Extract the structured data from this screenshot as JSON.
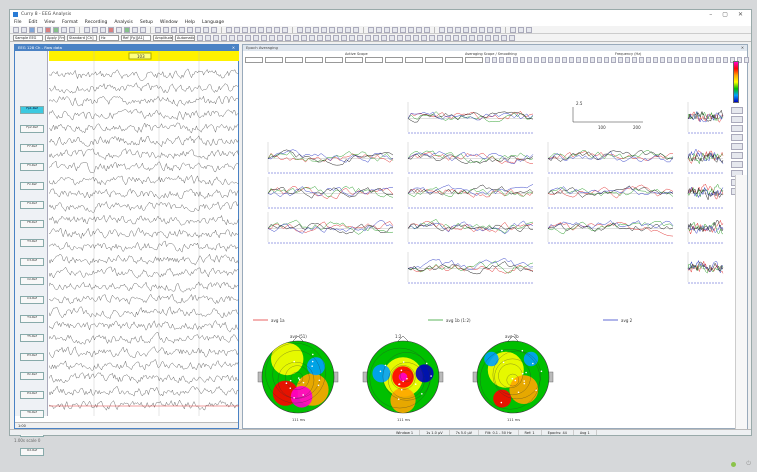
{
  "window": {
    "title": "Curry 8 - EEG Analysis",
    "controls": [
      "–",
      "▢",
      "✕"
    ]
  },
  "menu": [
    "File",
    "Edit",
    "View",
    "Format",
    "Recording",
    "Analysis",
    "Setup",
    "Window",
    "Help",
    "Language"
  ],
  "toolbar2": {
    "fields": [
      "Sample EEG",
      "Apply [Fm]",
      "Standard [Ch]",
      "Hz",
      "Ref [Fp][A1]",
      "Amplitude",
      "Automatic [AC]"
    ]
  },
  "eeg_window": {
    "title": "EEG 128 Ch - Raw data",
    "channels": [
      {
        "label": "Fp1-Ref",
        "sel": true
      },
      {
        "label": "Fp2-Ref",
        "sel": false
      },
      {
        "label": "F7-Ref",
        "sel": false
      },
      {
        "label": "F3-Ref",
        "sel": false
      },
      {
        "label": "Fz-Ref",
        "sel": false
      },
      {
        "label": "F4-Ref",
        "sel": false
      },
      {
        "label": "F8-Ref",
        "sel": false
      },
      {
        "label": "T3-Ref",
        "sel": false
      },
      {
        "label": "C3-Ref",
        "sel": false
      },
      {
        "label": "Cz-Ref",
        "sel": false
      },
      {
        "label": "C4-Ref",
        "sel": false
      },
      {
        "label": "T4-Ref",
        "sel": false
      },
      {
        "label": "T5-Ref",
        "sel": false
      },
      {
        "label": "P3-Ref",
        "sel": false
      },
      {
        "label": "Pz-Ref",
        "sel": false
      },
      {
        "label": "P4-Ref",
        "sel": false
      },
      {
        "label": "T6-Ref",
        "sel": false
      },
      {
        "label": "O1-Ref",
        "sel": false
      },
      {
        "label": "O2-Ref",
        "sel": false
      }
    ],
    "marker_label": "103",
    "status": "1:00"
  },
  "analysis_window": {
    "title": "Epoch Averaging",
    "header_labels": [
      "Active Scope",
      "Averaging Scope / Smoothing",
      "Frequency (Hz)"
    ],
    "legends": [
      {
        "label": "avg 1a",
        "color": "#e33b3b"
      },
      {
        "label": "avg 1b (1:2)",
        "color": "#33a333"
      },
      {
        "label": "avg 2",
        "color": "#3a46c9"
      }
    ],
    "topo_labels": [
      "avg (51)",
      "1:2",
      "avg 2b"
    ],
    "topo_times": [
      "111 ms",
      "111 ms",
      "111 ms"
    ],
    "scale_text": [
      "2.5",
      "100",
      "200"
    ]
  },
  "statusbar": [
    "Window 1",
    "1s  1.0 µV",
    "7s  5.0 µV",
    "Filt: 0.1 - 50 Hz",
    "Ref: 1",
    "Epochs: 44",
    "Avg 1"
  ],
  "bottom_left": "1.00s  scale 0",
  "colors": {
    "accent": "#4a82c4",
    "selected_channel": "#3cc9e0",
    "trace_red": "#e33b3b",
    "trace_green": "#33a333",
    "trace_blue": "#3a46c9",
    "trace_black": "#222222",
    "marker_yellow": "#fff200"
  }
}
